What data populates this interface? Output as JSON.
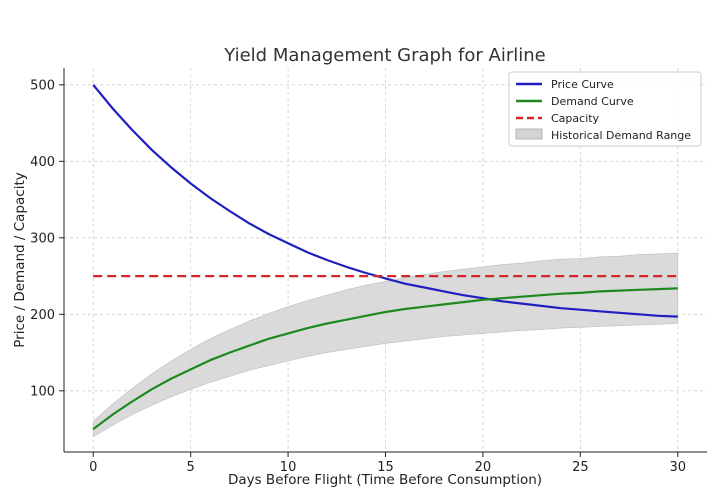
{
  "chart_data": {
    "type": "line",
    "title": "Yield Management Graph for Airline",
    "xlabel": "Days Before Flight (Time Before Consumption)",
    "ylabel": "Price / Demand / Capacity",
    "xlim": [
      -1.5,
      31.5
    ],
    "ylim": [
      20,
      522
    ],
    "xticks": [
      0,
      5,
      10,
      15,
      20,
      25,
      30
    ],
    "yticks": [
      100,
      200,
      300,
      400,
      500
    ],
    "grid": true,
    "legend_position": "top-right",
    "x": [
      0,
      1,
      2,
      3,
      4,
      5,
      6,
      7,
      8,
      9,
      10,
      11,
      12,
      13,
      14,
      15,
      16,
      17,
      18,
      19,
      20,
      21,
      22,
      23,
      24,
      25,
      26,
      27,
      28,
      29,
      30
    ],
    "series": [
      {
        "name": "Price Curve",
        "style": "line",
        "color": "#1f1fbf",
        "values": [
          500,
          469,
          441,
          415,
          392,
          371,
          352,
          335,
          319,
          305,
          293,
          281,
          271,
          262,
          254,
          247,
          240,
          235,
          230,
          225,
          221,
          217,
          214,
          211,
          208,
          206,
          204,
          202,
          200,
          198,
          197
        ]
      },
      {
        "name": "Demand Curve",
        "style": "line",
        "color": "#1e8a1e",
        "values": [
          50,
          69,
          86,
          102,
          116,
          128,
          140,
          150,
          159,
          168,
          175,
          182,
          188,
          193,
          198,
          203,
          207,
          210,
          213,
          216,
          219,
          221,
          223,
          225,
          227,
          228,
          230,
          231,
          232,
          233,
          234
        ]
      },
      {
        "name": "Capacity",
        "style": "dashed",
        "color": "#d62728",
        "values": [
          250,
          250,
          250,
          250,
          250,
          250,
          250,
          250,
          250,
          250,
          250,
          250,
          250,
          250,
          250,
          250,
          250,
          250,
          250,
          250,
          250,
          250,
          250,
          250,
          250,
          250,
          250,
          250,
          250,
          250,
          250
        ]
      },
      {
        "name": "Historical Demand Range",
        "style": "band",
        "color": "#d3d3d3",
        "lower": [
          40,
          55,
          69,
          81,
          92,
          102,
          111,
          119,
          127,
          133,
          139,
          145,
          150,
          154,
          158,
          162,
          165,
          168,
          171,
          173,
          175,
          177,
          179,
          180,
          182,
          183,
          184,
          185,
          186,
          187,
          188
        ],
        "upper": [
          60,
          83,
          103,
          122,
          139,
          154,
          168,
          180,
          191,
          201,
          210,
          218,
          225,
          232,
          238,
          243,
          248,
          252,
          256,
          259,
          262,
          265,
          267,
          270,
          272,
          273,
          275,
          276,
          278,
          279,
          280
        ]
      }
    ]
  }
}
